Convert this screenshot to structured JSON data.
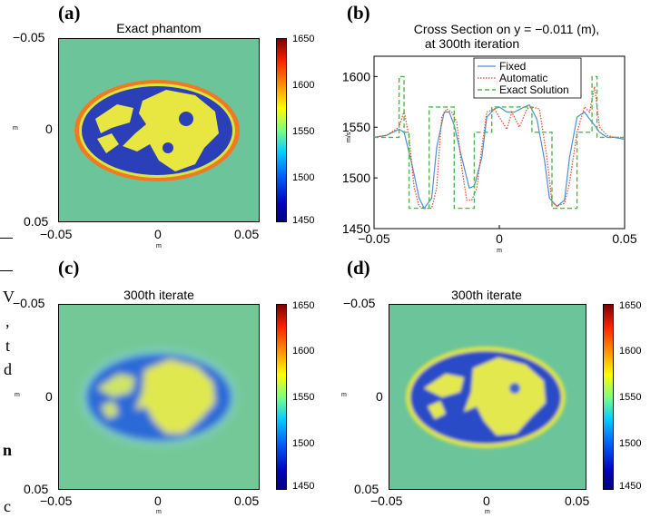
{
  "colors": {
    "background_field": "#6cc49a",
    "blue_tissue": "#2a3fb8",
    "yellow_tissue": "#e8e640",
    "rim_orange": "#ef7a22",
    "fixed": "#4f8fd0",
    "automatic": "#e04a2a",
    "exact": "#4cb84c"
  },
  "panels": {
    "a": {
      "letter": "(a)",
      "title": "Exact phantom",
      "xlabel": "m",
      "ylabel": "m"
    },
    "b": {
      "letter": "(b)",
      "title_line1": "Cross Section on y = −0.011 (m),",
      "title_line2": "at 300th iteration",
      "ylabel": "m/s",
      "xlabel": "m"
    },
    "c": {
      "letter": "(c)",
      "title": "300th iterate",
      "xlabel": "m",
      "ylabel": "m"
    },
    "d": {
      "letter": "(d)",
      "title": "300th iterate",
      "xlabel": "m",
      "ylabel": "m"
    }
  },
  "image_ticks": {
    "x": [
      "−0.05",
      "0",
      "0.05"
    ],
    "y": [
      "−0.05",
      "0",
      "0.05"
    ]
  },
  "colorbar_ticks": [
    "1650",
    "1600",
    "1550",
    "1500",
    "1450"
  ],
  "text_fragments": {
    "f1": "V",
    "f2": ",",
    "f3": "t",
    "f4": "d",
    "f5": "E",
    "f6": "n",
    "f7": "c"
  },
  "chart_data": [
    {
      "type": "heatmap",
      "title": "Exact phantom",
      "xlabel": "m",
      "ylabel": "m",
      "xlim": [
        -0.05,
        0.05
      ],
      "ylim": [
        -0.05,
        0.05
      ],
      "colorbar_range": [
        1450,
        1650
      ]
    },
    {
      "type": "line",
      "title": "Cross Section on y = −0.011 (m), at 300th iteration",
      "xlabel": "m",
      "ylabel": "m/s",
      "xlim": [
        -0.05,
        0.05
      ],
      "ylim": [
        1450,
        1620
      ],
      "xticks": [
        "−0.05",
        "0",
        "0.05"
      ],
      "yticks": [
        "1450",
        "1500",
        "1550",
        "1600"
      ],
      "legend": "top-center",
      "series": [
        {
          "name": "Fixed",
          "x": [
            -0.05,
            -0.045,
            -0.04,
            -0.038,
            -0.035,
            -0.032,
            -0.03,
            -0.027,
            -0.025,
            -0.022,
            -0.02,
            -0.018,
            -0.015,
            -0.012,
            -0.01,
            -0.007,
            -0.005,
            -0.002,
            0.0,
            0.003,
            0.006,
            0.01,
            0.012,
            0.015,
            0.018,
            0.02,
            0.023,
            0.026,
            0.028,
            0.031,
            0.034,
            0.036,
            0.038,
            0.04,
            0.043,
            0.046,
            0.05
          ],
          "values": [
            1540,
            1542,
            1548,
            1545,
            1515,
            1480,
            1470,
            1480,
            1530,
            1565,
            1565,
            1552,
            1520,
            1490,
            1492,
            1520,
            1560,
            1568,
            1570,
            1565,
            1565,
            1570,
            1572,
            1558,
            1518,
            1480,
            1472,
            1478,
            1520,
            1560,
            1565,
            1558,
            1552,
            1545,
            1540,
            1540,
            1538
          ]
        },
        {
          "name": "Automatic",
          "x": [
            -0.05,
            -0.045,
            -0.04,
            -0.038,
            -0.036,
            -0.034,
            -0.032,
            -0.03,
            -0.027,
            -0.025,
            -0.023,
            -0.021,
            -0.019,
            -0.017,
            -0.015,
            -0.013,
            -0.011,
            -0.009,
            -0.007,
            -0.005,
            -0.002,
            0.0,
            0.003,
            0.005,
            0.008,
            0.011,
            0.013,
            0.016,
            0.019,
            0.021,
            0.023,
            0.026,
            0.028,
            0.031,
            0.034,
            0.036,
            0.038,
            0.04,
            0.043,
            0.046,
            0.05
          ],
          "values": [
            1540,
            1542,
            1550,
            1566,
            1540,
            1490,
            1472,
            1470,
            1470,
            1490,
            1560,
            1568,
            1565,
            1555,
            1510,
            1478,
            1478,
            1490,
            1530,
            1565,
            1568,
            1560,
            1548,
            1565,
            1550,
            1568,
            1570,
            1568,
            1520,
            1476,
            1472,
            1475,
            1495,
            1545,
            1570,
            1565,
            1590,
            1550,
            1542,
            1540,
            1540
          ]
        },
        {
          "name": "Exact Solution",
          "x": [
            -0.05,
            -0.04,
            -0.04,
            -0.038,
            -0.038,
            -0.036,
            -0.036,
            -0.028,
            -0.028,
            -0.018,
            -0.018,
            -0.01,
            -0.01,
            -0.003,
            -0.003,
            0.013,
            0.013,
            0.021,
            0.021,
            0.031,
            0.031,
            0.037,
            0.037,
            0.039,
            0.039,
            0.05
          ],
          "values": [
            1540,
            1540,
            1600,
            1600,
            1545,
            1545,
            1470,
            1470,
            1570,
            1570,
            1470,
            1470,
            1545,
            1545,
            1570,
            1570,
            1545,
            1545,
            1470,
            1470,
            1545,
            1545,
            1600,
            1600,
            1540,
            1540
          ]
        }
      ]
    },
    {
      "type": "heatmap",
      "title": "300th iterate",
      "xlabel": "m",
      "ylabel": "m",
      "xlim": [
        -0.05,
        0.05
      ],
      "ylim": [
        -0.05,
        0.05
      ],
      "colorbar_range": [
        1450,
        1650
      ]
    },
    {
      "type": "heatmap",
      "title": "300th iterate",
      "xlabel": "m",
      "ylabel": "m",
      "xlim": [
        -0.05,
        0.05
      ],
      "ylim": [
        -0.05,
        0.05
      ],
      "colorbar_range": [
        1450,
        1650
      ]
    }
  ]
}
